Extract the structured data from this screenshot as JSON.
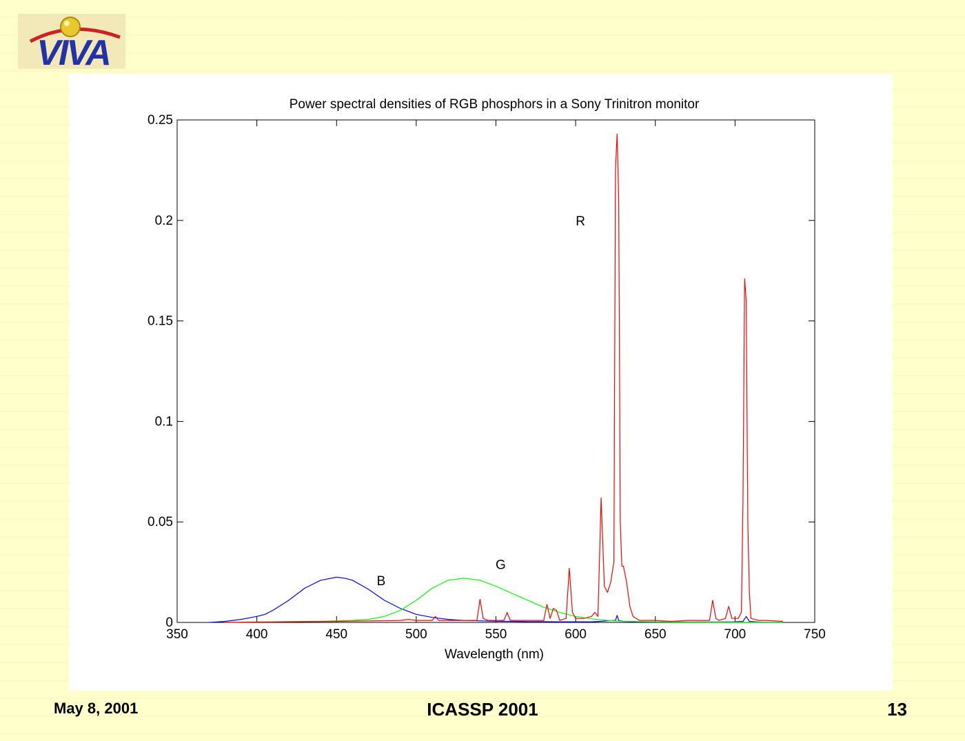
{
  "logo": {
    "text": "VIVA"
  },
  "footer": {
    "date": "May 8, 2001",
    "conference": "ICASSP 2001",
    "page": "13"
  },
  "chart_data": {
    "type": "line",
    "title": "Power spectral densities of RGB phosphors in a Sony Trinitron monitor",
    "xlabel": "Wavelength (nm)",
    "ylabel": "",
    "xlim": [
      350,
      750
    ],
    "ylim": [
      0,
      0.25
    ],
    "xticks": [
      350,
      400,
      450,
      500,
      550,
      600,
      650,
      700,
      750
    ],
    "yticks": [
      0,
      0.05,
      0.1,
      0.15,
      0.2,
      0.25
    ],
    "ytick_labels": [
      "0",
      "0.05",
      "0.1",
      "0.15",
      "0.2",
      "0.25"
    ],
    "grid": false,
    "annotations": [
      {
        "text": "R",
        "x": 603,
        "y": 0.2
      },
      {
        "text": "G",
        "x": 553,
        "y": 0.029
      },
      {
        "text": "B",
        "x": 478,
        "y": 0.021
      }
    ],
    "series": [
      {
        "color": "#0000ff",
        "x": [
          370,
          380,
          390,
          400,
          405,
          410,
          420,
          430,
          440,
          450,
          455,
          460,
          470,
          480,
          490,
          500,
          510,
          520,
          530,
          540,
          550,
          560,
          570,
          580,
          590,
          600,
          610,
          615,
          620,
          625,
          626,
          627,
          630,
          640,
          650,
          660,
          670,
          680,
          690,
          700,
          705,
          707,
          709,
          715,
          720,
          730
        ],
        "y": [
          0.0,
          0.0005,
          0.0015,
          0.003,
          0.004,
          0.006,
          0.011,
          0.017,
          0.021,
          0.0225,
          0.022,
          0.021,
          0.0165,
          0.011,
          0.007,
          0.004,
          0.0025,
          0.0015,
          0.001,
          0.0008,
          0.0006,
          0.0005,
          0.0004,
          0.0004,
          0.0003,
          0.0003,
          0.0003,
          0.0005,
          0.0008,
          0.001,
          0.0035,
          0.001,
          0.0005,
          0.0003,
          0.0002,
          0.0002,
          0.0002,
          0.0002,
          0.0002,
          0.0003,
          0.0005,
          0.003,
          0.0005,
          0.0002,
          0.0001,
          0.0001
        ]
      },
      {
        "color": "#00ff00",
        "x": [
          380,
          400,
          420,
          440,
          460,
          470,
          480,
          490,
          500,
          510,
          520,
          530,
          540,
          550,
          560,
          570,
          580,
          590,
          600,
          610,
          620,
          630,
          640,
          650,
          660,
          680,
          700,
          720,
          730
        ],
        "y": [
          0.0001,
          0.0002,
          0.0004,
          0.0006,
          0.001,
          0.0015,
          0.003,
          0.006,
          0.011,
          0.017,
          0.021,
          0.022,
          0.021,
          0.018,
          0.0145,
          0.011,
          0.0075,
          0.005,
          0.003,
          0.0018,
          0.001,
          0.0006,
          0.0004,
          0.0003,
          0.0002,
          0.0001,
          0.0001,
          0.0001,
          0.0001
        ]
      },
      {
        "color": "#ff0000",
        "x": [
          380,
          400,
          450,
          490,
          495,
          500,
          510,
          512,
          514,
          520,
          530,
          538,
          540,
          542,
          545,
          550,
          555,
          557,
          559,
          565,
          570,
          575,
          580,
          582,
          584,
          586,
          588,
          590,
          594,
          596,
          598,
          600,
          605,
          610,
          612,
          614,
          616,
          618,
          620,
          622,
          624,
          625,
          626,
          627,
          628,
          629,
          630,
          632,
          634,
          636,
          640,
          650,
          660,
          670,
          680,
          684,
          686,
          688,
          690,
          694,
          696,
          698,
          700,
          702,
          704,
          705,
          706,
          707,
          708,
          709,
          710,
          715,
          720,
          730
        ],
        "y": [
          0.0,
          0.0002,
          0.0005,
          0.001,
          0.0015,
          0.001,
          0.001,
          0.003,
          0.001,
          0.001,
          0.001,
          0.001,
          0.0115,
          0.002,
          0.001,
          0.001,
          0.001,
          0.005,
          0.001,
          0.001,
          0.001,
          0.001,
          0.001,
          0.009,
          0.002,
          0.007,
          0.006,
          0.001,
          0.002,
          0.027,
          0.005,
          0.002,
          0.002,
          0.003,
          0.005,
          0.003,
          0.062,
          0.018,
          0.015,
          0.02,
          0.03,
          0.225,
          0.243,
          0.21,
          0.05,
          0.028,
          0.028,
          0.02,
          0.008,
          0.003,
          0.001,
          0.001,
          0.0005,
          0.001,
          0.001,
          0.001,
          0.011,
          0.002,
          0.001,
          0.002,
          0.008,
          0.002,
          0.002,
          0.002,
          0.005,
          0.06,
          0.171,
          0.16,
          0.05,
          0.015,
          0.002,
          0.001,
          0.001,
          0.0005
        ]
      }
    ]
  }
}
